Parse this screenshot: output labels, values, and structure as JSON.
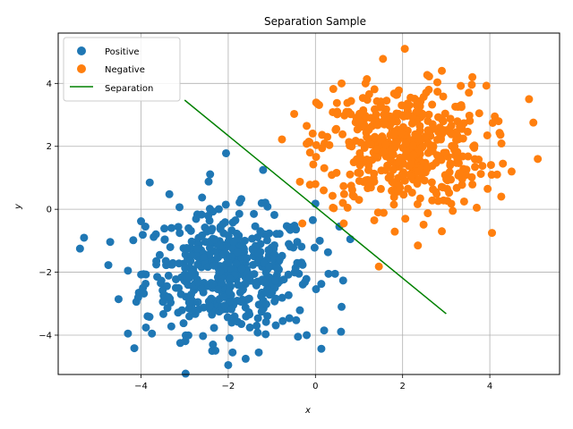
{
  "chart_data": {
    "type": "scatter",
    "title": "Separation Sample",
    "xlabel": "x",
    "ylabel": "y",
    "xlim": [
      -5.9,
      5.6
    ],
    "ylim": [
      -5.25,
      5.6
    ],
    "x_ticks": [
      -4,
      -2,
      0,
      2,
      4
    ],
    "y_ticks": [
      -4,
      -2,
      0,
      2,
      4
    ],
    "grid": true,
    "legend_position": "top-left",
    "series": [
      {
        "name": "Positive",
        "color": "#1f77b4",
        "kind": "scatter",
        "center": [
          -2,
          -2
        ],
        "spread": 0.95,
        "count": 500,
        "points": [
          [
            -5.4,
            -1.25
          ],
          [
            -4.3,
            -3.95
          ],
          [
            -4.3,
            -1.95
          ],
          [
            -3.75,
            -3.95
          ],
          [
            -3.8,
            0.85
          ],
          [
            -3.35,
            0.48
          ],
          [
            -2.45,
            0.88
          ],
          [
            -2.05,
            1.78
          ],
          [
            -1.2,
            1.25
          ],
          [
            0.0,
            0.18
          ],
          [
            0.55,
            -0.55
          ],
          [
            0.8,
            -0.95
          ],
          [
            -4.05,
            -2.65
          ],
          [
            -4.0,
            -0.38
          ],
          [
            -3.9,
            -0.55
          ],
          [
            -3.85,
            -3.4
          ],
          [
            -3.1,
            -4.25
          ],
          [
            -2.0,
            -4.95
          ],
          [
            -1.9,
            -4.55
          ],
          [
            -1.6,
            -4.75
          ],
          [
            -1.3,
            -4.55
          ],
          [
            -0.4,
            -4.05
          ],
          [
            0.2,
            -3.85
          ],
          [
            0.6,
            -3.1
          ],
          [
            0.3,
            -2.05
          ],
          [
            0.45,
            -2.05
          ],
          [
            -0.2,
            -4.0
          ],
          [
            -2.35,
            -4.3
          ],
          [
            0.1,
            -1.0
          ],
          [
            -0.75,
            -3.55
          ]
        ]
      },
      {
        "name": "Negative",
        "color": "#ff7f0e",
        "kind": "scatter",
        "center": [
          2,
          2
        ],
        "spread": 0.95,
        "count": 500,
        "points": [
          [
            1.55,
            4.78
          ],
          [
            2.05,
            5.1
          ],
          [
            2.9,
            4.4
          ],
          [
            3.6,
            4.2
          ],
          [
            4.9,
            3.5
          ],
          [
            5.1,
            1.6
          ],
          [
            4.05,
            -0.75
          ],
          [
            2.35,
            -1.15
          ],
          [
            2.9,
            -0.7
          ],
          [
            0.65,
            -0.45
          ],
          [
            -0.3,
            -0.45
          ],
          [
            0.4,
            0.05
          ],
          [
            1.35,
            -0.35
          ],
          [
            3.15,
            -0.05
          ],
          [
            4.2,
            2.8
          ],
          [
            0.6,
            4.0
          ],
          [
            1.15,
            4.0
          ],
          [
            -0.2,
            2.65
          ],
          [
            -0.15,
            2.15
          ],
          [
            0.05,
            3.35
          ],
          [
            4.5,
            1.2
          ],
          [
            4.3,
            1.45
          ],
          [
            0.0,
            0.8
          ],
          [
            1.0,
            0.3
          ],
          [
            3.7,
            0.05
          ],
          [
            2.6,
            3.8
          ],
          [
            3.95,
            0.65
          ],
          [
            0.5,
            3.1
          ],
          [
            1.8,
            0.15
          ],
          [
            3.35,
            3.25
          ]
        ]
      }
    ],
    "line": {
      "name": "Separation",
      "color": "#008000",
      "x": [
        -3.0,
        3.0
      ],
      "y": [
        3.47,
        -3.32
      ]
    }
  }
}
